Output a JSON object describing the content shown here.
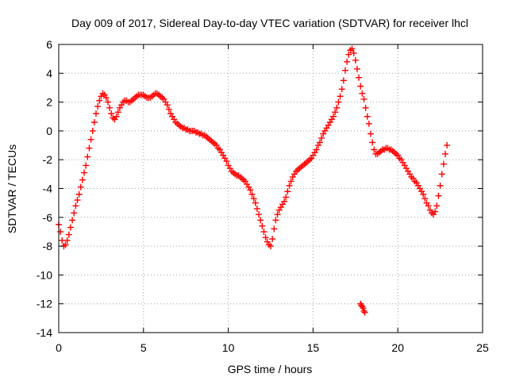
{
  "chart_data": {
    "type": "scatter",
    "title": "Day 009 of 2017, Sidereal Day-to-day VTEC variation (SDTVAR) for receiver lhcl",
    "xlabel": "GPS time / hours",
    "ylabel": "SDTVAR / TECUs",
    "xlim": [
      0,
      25
    ],
    "ylim": [
      -14,
      6
    ],
    "x_ticks": [
      0,
      5,
      10,
      15,
      20,
      25
    ],
    "x_tick_labels": [
      "0",
      "5",
      "10",
      "15",
      "20",
      "25"
    ],
    "y_ticks": [
      -14,
      -12,
      -10,
      -8,
      -6,
      -4,
      -2,
      0,
      2,
      4,
      6
    ],
    "y_tick_labels": [
      "-14",
      "-12",
      "-10",
      "-8",
      "-6",
      "-4",
      "-2",
      "0",
      "2",
      "4",
      "6"
    ],
    "grid": true,
    "marker": "+",
    "color": "#ff0000",
    "series": [
      {
        "name": "main",
        "x": [
          0.0,
          0.1,
          0.2,
          0.3,
          0.4,
          0.5,
          0.6,
          0.7,
          0.8,
          0.9,
          1.0,
          1.1,
          1.2,
          1.3,
          1.4,
          1.5,
          1.6,
          1.7,
          1.8,
          1.9,
          2.0,
          2.1,
          2.2,
          2.3,
          2.4,
          2.5,
          2.6,
          2.7,
          2.8,
          2.9,
          3.0,
          3.1,
          3.2,
          3.3,
          3.4,
          3.5,
          3.6,
          3.7,
          3.8,
          3.9,
          4.0,
          4.1,
          4.2,
          4.3,
          4.4,
          4.5,
          4.6,
          4.7,
          4.8,
          4.9,
          5.0,
          5.1,
          5.2,
          5.3,
          5.4,
          5.5,
          5.6,
          5.7,
          5.8,
          5.9,
          6.0,
          6.1,
          6.2,
          6.3,
          6.4,
          6.5,
          6.6,
          6.7,
          6.8,
          6.9,
          7.0,
          7.1,
          7.2,
          7.3,
          7.4,
          7.5,
          7.6,
          7.7,
          7.8,
          7.9,
          8.0,
          8.1,
          8.2,
          8.3,
          8.4,
          8.5,
          8.6,
          8.7,
          8.8,
          8.9,
          9.0,
          9.1,
          9.2,
          9.3,
          9.4,
          9.5,
          9.6,
          9.7,
          9.8,
          9.9,
          10.0,
          10.1,
          10.2,
          10.3,
          10.4,
          10.5,
          10.6,
          10.7,
          10.8,
          10.9,
          11.0,
          11.1,
          11.2,
          11.3,
          11.4,
          11.5,
          11.6,
          11.7,
          11.8,
          11.9,
          12.0,
          12.1,
          12.2,
          12.3,
          12.4,
          12.5,
          12.6,
          12.7,
          12.8,
          12.9,
          13.0,
          13.1,
          13.2,
          13.3,
          13.4,
          13.5,
          13.6,
          13.7,
          13.8,
          13.9,
          14.0,
          14.1,
          14.2,
          14.3,
          14.4,
          14.5,
          14.6,
          14.7,
          14.8,
          14.9,
          15.0,
          15.1,
          15.2,
          15.3,
          15.4,
          15.5,
          15.6,
          15.7,
          15.8,
          15.9,
          16.0,
          16.1,
          16.2,
          16.3,
          16.4,
          16.5,
          16.6,
          16.7,
          16.8,
          16.9,
          17.0,
          17.1,
          17.2,
          17.3,
          17.4,
          17.5,
          17.6,
          17.7,
          17.8,
          17.9,
          18.0,
          18.1,
          18.2,
          18.3,
          18.4,
          18.5,
          18.6,
          18.7,
          18.8,
          18.9,
          19.0,
          19.1,
          19.2,
          19.3,
          19.4,
          19.5,
          19.6,
          19.7,
          19.8,
          19.9,
          20.0,
          20.1,
          20.2,
          20.3,
          20.4,
          20.5,
          20.6,
          20.7,
          20.8,
          20.9,
          21.0,
          21.1,
          21.2,
          21.3,
          21.4,
          21.5,
          21.6,
          21.7,
          21.8,
          21.9,
          22.0,
          22.1,
          22.2,
          22.3,
          22.4,
          22.5,
          22.6,
          22.7,
          22.8,
          22.9
        ],
        "y": [
          -6.5,
          -7.0,
          -7.6,
          -8.0,
          -7.9,
          -7.6,
          -7.2,
          -6.7,
          -6.2,
          -5.7,
          -5.2,
          -4.8,
          -4.4,
          -3.9,
          -3.4,
          -2.9,
          -2.4,
          -1.8,
          -1.2,
          -0.6,
          0.0,
          0.6,
          1.2,
          1.7,
          2.1,
          2.4,
          2.6,
          2.5,
          2.3,
          2.0,
          1.6,
          1.2,
          0.9,
          0.8,
          1.0,
          1.3,
          1.6,
          1.8,
          2.0,
          2.1,
          2.1,
          2.0,
          2.0,
          2.1,
          2.2,
          2.3,
          2.4,
          2.5,
          2.5,
          2.5,
          2.5,
          2.4,
          2.3,
          2.3,
          2.3,
          2.4,
          2.5,
          2.6,
          2.6,
          2.5,
          2.4,
          2.3,
          2.2,
          2.0,
          1.8,
          1.5,
          1.2,
          1.0,
          0.8,
          0.6,
          0.5,
          0.4,
          0.3,
          0.2,
          0.2,
          0.1,
          0.1,
          0.0,
          0.0,
          0.0,
          0.0,
          -0.1,
          -0.1,
          -0.2,
          -0.2,
          -0.3,
          -0.3,
          -0.4,
          -0.5,
          -0.6,
          -0.7,
          -0.8,
          -0.9,
          -1.0,
          -1.2,
          -1.3,
          -1.5,
          -1.7,
          -1.9,
          -2.1,
          -2.4,
          -2.6,
          -2.8,
          -2.9,
          -3.0,
          -3.1,
          -3.1,
          -3.2,
          -3.3,
          -3.4,
          -3.5,
          -3.7,
          -3.9,
          -4.1,
          -4.4,
          -4.7,
          -5.0,
          -5.4,
          -5.8,
          -6.2,
          -6.6,
          -7.0,
          -7.4,
          -7.7,
          -7.9,
          -8.0,
          -7.5,
          -6.8,
          -6.2,
          -5.8,
          -5.5,
          -5.3,
          -5.1,
          -4.9,
          -4.6,
          -4.2,
          -3.8,
          -3.5,
          -3.2,
          -3.0,
          -2.8,
          -2.7,
          -2.6,
          -2.5,
          -2.4,
          -2.3,
          -2.2,
          -2.1,
          -2.0,
          -1.9,
          -1.7,
          -1.5,
          -1.3,
          -1.0,
          -0.8,
          -0.5,
          -0.2,
          0.0,
          0.2,
          0.4,
          0.6,
          0.8,
          1.0,
          1.3,
          1.6,
          2.0,
          2.4,
          2.9,
          3.5,
          4.2,
          4.8,
          5.3,
          5.6,
          5.7,
          5.4,
          4.9,
          4.3,
          3.7,
          3.1,
          2.6,
          2.2,
          1.6,
          1.0,
          0.5,
          -0.2,
          -0.8,
          -1.3,
          -1.6,
          -1.6,
          -1.5,
          -1.4,
          -1.3,
          -1.3,
          -1.2,
          -1.2,
          -1.3,
          -1.3,
          -1.4,
          -1.5,
          -1.6,
          -1.7,
          -1.9,
          -2.0,
          -2.2,
          -2.4,
          -2.6,
          -2.8,
          -3.0,
          -3.2,
          -3.3,
          -3.5,
          -3.6,
          -3.8,
          -4.0,
          -4.2,
          -4.4,
          -4.7,
          -5.0,
          -5.2,
          -5.5,
          -5.7,
          -5.8,
          -5.6,
          -5.2,
          -4.5,
          -3.8,
          -3.0,
          -2.3,
          -1.6,
          -1.0
        ]
      },
      {
        "name": "outliers",
        "x": [
          17.8,
          17.85,
          17.9,
          17.95,
          18.0,
          18.05
        ],
        "y": [
          -12.0,
          -12.1,
          -12.2,
          -12.3,
          -12.5,
          -12.6
        ]
      }
    ]
  }
}
